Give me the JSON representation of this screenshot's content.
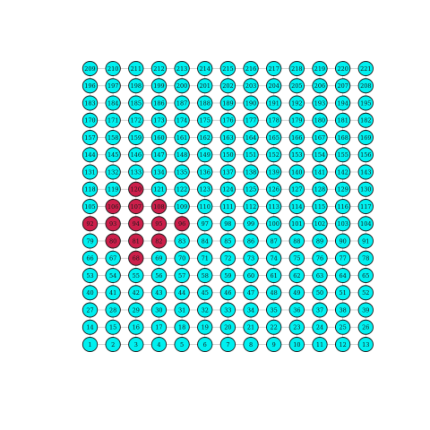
{
  "diagram": {
    "type": "grid-graph",
    "rows": 17,
    "columns": 13,
    "first_node": 1,
    "last_node": 221,
    "numbering": "row-major, 1 at bottom-left, increasing left-to-right then upward",
    "default_node_color": "#00f0f0",
    "highlight_node_color": "#cc1f4a",
    "edge_color": "#c8c8c8",
    "node_border_color": "#1a1a1a",
    "highlighted_nodes": [
      120,
      106,
      107,
      108,
      92,
      93,
      94,
      95,
      96,
      80,
      81,
      82,
      68
    ]
  }
}
